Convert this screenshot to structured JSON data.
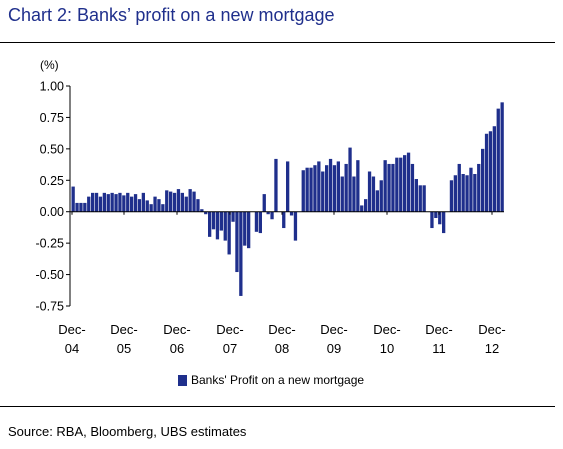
{
  "title": "Chart 2: Banks’ profit on a new mortgage",
  "source": "Source: RBA, Bloomberg, UBS estimates",
  "colors": {
    "title": "#1f2f8c",
    "bar": "#1f2f8c"
  },
  "chart_data": {
    "type": "bar",
    "ylabel": "(%)",
    "ylim": [
      -0.75,
      1.0
    ],
    "yticks": [
      -0.75,
      -0.5,
      -0.25,
      0.0,
      0.25,
      0.5,
      0.75,
      1.0
    ],
    "ytick_labels": [
      "-0.75",
      "-0.50",
      "-0.25",
      "0.00",
      "0.25",
      "0.50",
      "0.75",
      "1.00"
    ],
    "xtick_labels": [
      {
        "line1": "Dec-",
        "line2": "04"
      },
      {
        "line1": "Dec-",
        "line2": "05"
      },
      {
        "line1": "Dec-",
        "line2": "06"
      },
      {
        "line1": "Dec-",
        "line2": "07"
      },
      {
        "line1": "Dec-",
        "line2": "08"
      },
      {
        "line1": "Dec-",
        "line2": "09"
      },
      {
        "line1": "Dec-",
        "line2": "10"
      },
      {
        "line1": "Dec-",
        "line2": "11"
      },
      {
        "line1": "Dec-",
        "line2": "12"
      }
    ],
    "grid": false,
    "legend_position": "bottom",
    "series": [
      {
        "name": "Banks' Profit on a new mortgage",
        "values": [
          0.2,
          0.07,
          0.07,
          0.07,
          0.12,
          0.15,
          0.15,
          0.12,
          0.15,
          0.14,
          0.15,
          0.14,
          0.15,
          0.13,
          0.15,
          0.12,
          0.14,
          0.1,
          0.15,
          0.09,
          0.06,
          0.12,
          0.1,
          0.06,
          0.17,
          0.16,
          0.15,
          0.18,
          0.15,
          0.12,
          0.18,
          0.16,
          0.1,
          0.02,
          -0.02,
          -0.2,
          -0.14,
          -0.22,
          -0.15,
          -0.23,
          -0.34,
          -0.08,
          -0.48,
          -0.67,
          -0.27,
          -0.29,
          0.0,
          -0.16,
          -0.17,
          0.14,
          -0.02,
          -0.06,
          0.42,
          0.0,
          -0.13,
          0.4,
          -0.03,
          -0.23,
          0.0,
          0.33,
          0.35,
          0.35,
          0.37,
          0.4,
          0.32,
          0.37,
          0.42,
          0.37,
          0.4,
          0.28,
          0.38,
          0.51,
          0.28,
          0.41,
          0.05,
          0.1,
          0.32,
          0.28,
          0.17,
          0.25,
          0.41,
          0.38,
          0.38,
          0.43,
          0.43,
          0.45,
          0.47,
          0.38,
          0.26,
          0.21,
          0.21,
          0.0,
          -0.13,
          -0.05,
          -0.1,
          -0.17,
          0.0,
          0.25,
          0.29,
          0.38,
          0.3,
          0.29,
          0.35,
          0.3,
          0.38,
          0.5,
          0.62,
          0.64,
          0.68,
          0.82,
          0.87
        ]
      }
    ]
  }
}
